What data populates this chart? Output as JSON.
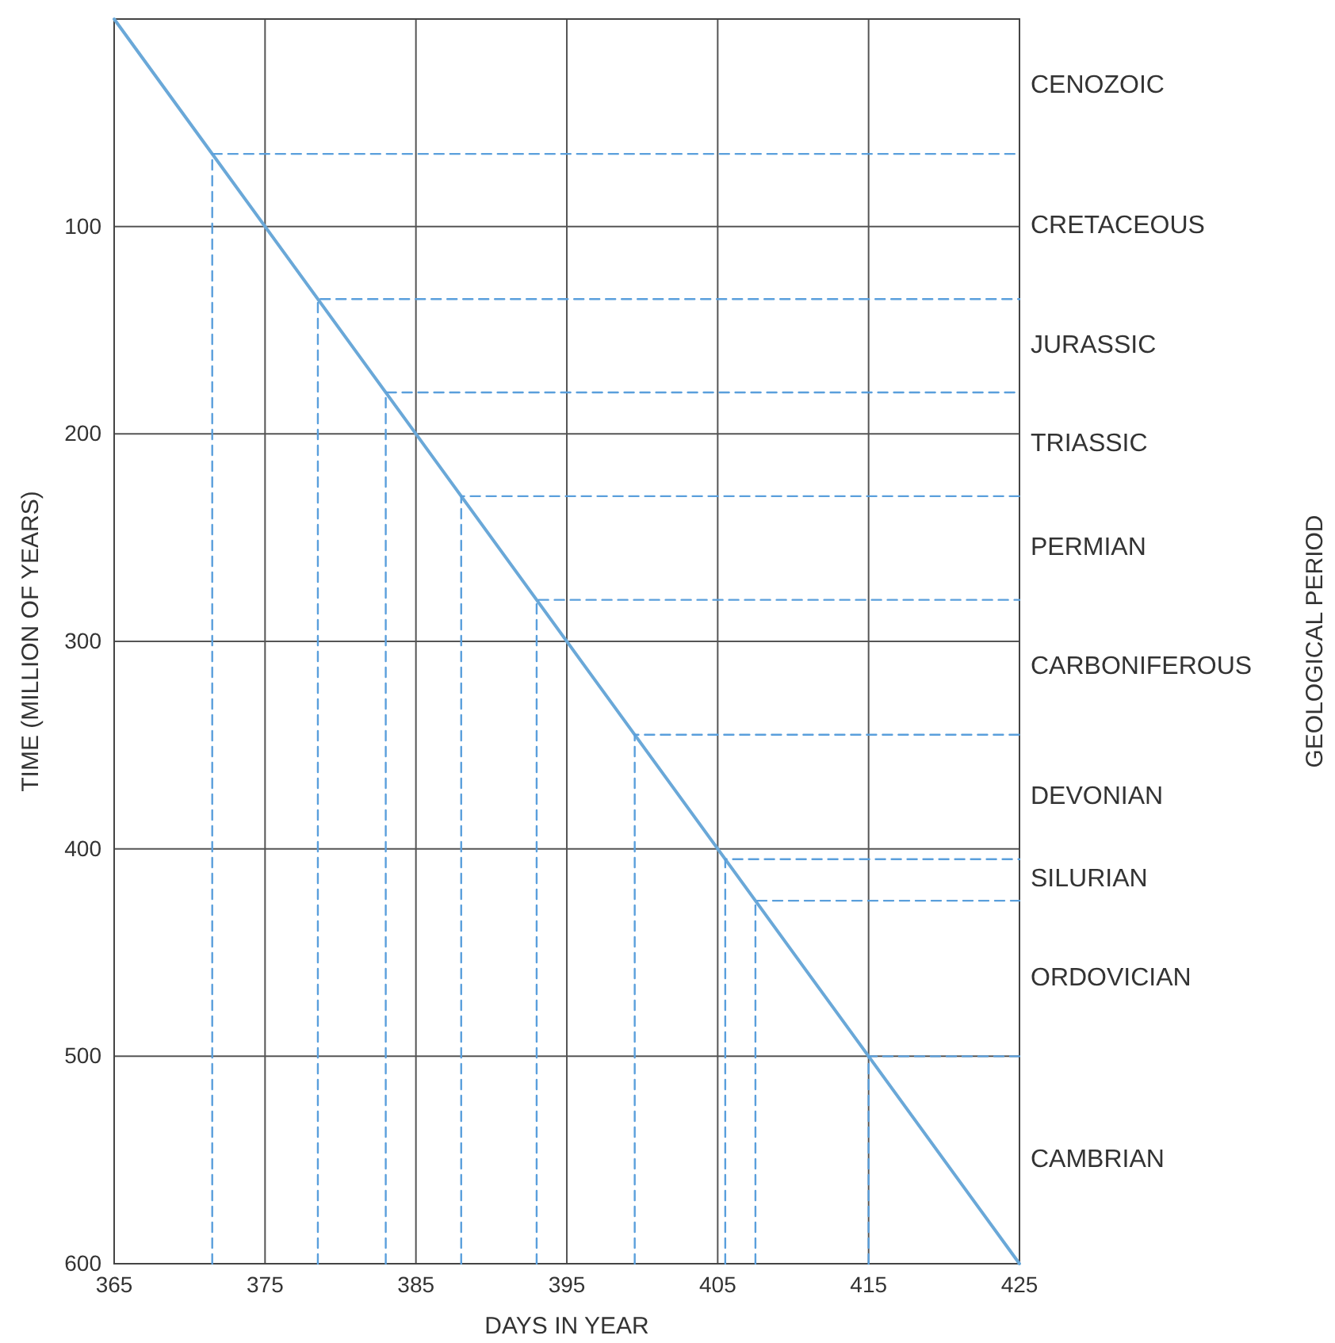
{
  "chart_data": {
    "type": "line",
    "xlabel": "DAYS IN YEAR",
    "ylabel": "TIME (MILLION OF YEARS)",
    "xlim": [
      365,
      425
    ],
    "xticks": [
      365,
      375,
      385,
      395,
      405,
      415,
      425
    ],
    "ylim": [
      600,
      0
    ],
    "yticks": [
      100,
      200,
      300,
      400,
      500,
      600
    ],
    "grid": true,
    "marker": "none",
    "series": [
      {
        "color": "#6aa8d8",
        "x": [
          365,
          425
        ],
        "values": [
          0,
          600
        ],
        "line_style": "solid"
      },
      {
        "color": "#5a9fdc",
        "x": [
          371.5,
          371.5,
          425
        ],
        "values": [
          600,
          65,
          65
        ],
        "line_style": "dashed"
      },
      {
        "color": "#5a9fdc",
        "x": [
          378.5,
          378.5,
          425
        ],
        "values": [
          600,
          135,
          135
        ],
        "line_style": "dashed"
      },
      {
        "color": "#5a9fdc",
        "x": [
          383,
          383,
          425
        ],
        "values": [
          600,
          180,
          180
        ],
        "line_style": "dashed"
      },
      {
        "color": "#5a9fdc",
        "x": [
          388,
          388,
          425
        ],
        "values": [
          600,
          230,
          230
        ],
        "line_style": "dashed"
      },
      {
        "color": "#5a9fdc",
        "x": [
          393,
          393,
          425
        ],
        "values": [
          600,
          280,
          280
        ],
        "line_style": "dashed"
      },
      {
        "color": "#5a9fdc",
        "x": [
          399.5,
          399.5,
          425
        ],
        "values": [
          600,
          345,
          345
        ],
        "line_style": "dashed"
      },
      {
        "color": "#5a9fdc",
        "x": [
          405.5,
          405.5,
          425
        ],
        "values": [
          600,
          405,
          405
        ],
        "line_style": "dashed"
      },
      {
        "color": "#5a9fdc",
        "x": [
          407.5,
          407.5,
          425
        ],
        "values": [
          600,
          425,
          425
        ],
        "line_style": "dashed"
      },
      {
        "color": "#5a9fdc",
        "x": [
          415,
          415,
          425
        ],
        "values": [
          600,
          500,
          500
        ],
        "line_style": "dashed"
      }
    ],
    "annotations": [
      "GEOLOGICAL PERIOD",
      "CENOZOIC",
      "CRETACEOUS",
      "JURASSIC",
      "TRIASSIC",
      "PERMIAN",
      "CARBONIFEROUS",
      "DEVONIAN",
      "SILURIAN",
      "ORDOVICIAN",
      "CAMBRIAN"
    ]
  }
}
